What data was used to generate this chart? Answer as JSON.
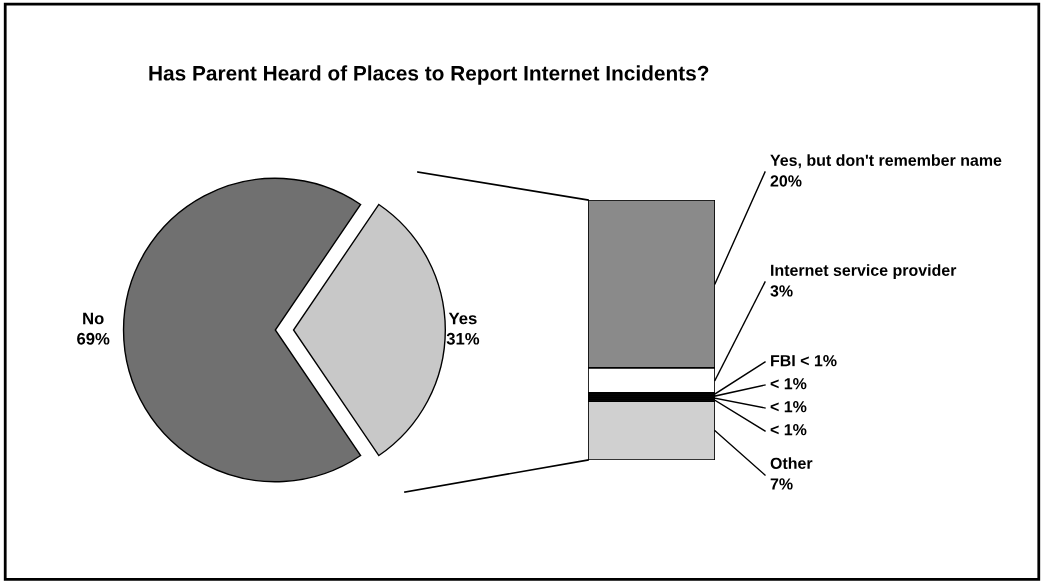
{
  "chart_data": [
    {
      "type": "pie",
      "title": "Has Parent Heard of Places to Report Internet Incidents?",
      "categories": [
        "No",
        "Yes"
      ],
      "values": [
        69,
        31
      ],
      "colors": [
        "#707070",
        "#c8c8c8"
      ],
      "value_labels": [
        "69%",
        "31%"
      ]
    },
    {
      "type": "bar",
      "stacked": true,
      "categories": [
        null
      ],
      "series": [
        {
          "name": "Other",
          "color": "#d0d0d0",
          "values": [
            7
          ],
          "value_labels": [
            "7%"
          ]
        },
        {
          "color": "#111111",
          "values": [
            0.25
          ],
          "value_labels": [
            "< 1%"
          ]
        },
        {
          "color": "#111111",
          "values": [
            0.25
          ],
          "value_labels": [
            "< 1%"
          ]
        },
        {
          "color": "#111111",
          "values": [
            0.25
          ],
          "value_labels": [
            "< 1%"
          ]
        },
        {
          "name": "FBI",
          "color": "#111111",
          "values": [
            0.25
          ],
          "value_labels": [
            "< 1%"
          ]
        },
        {
          "name": "Internet service provider",
          "color": "#ffffff",
          "values": [
            3
          ],
          "value_labels": [
            "3%"
          ]
        },
        {
          "name": "Yes, but don't remember name",
          "color": "#8a8a8a",
          "values": [
            20
          ],
          "value_labels": [
            "20%"
          ]
        }
      ]
    }
  ]
}
